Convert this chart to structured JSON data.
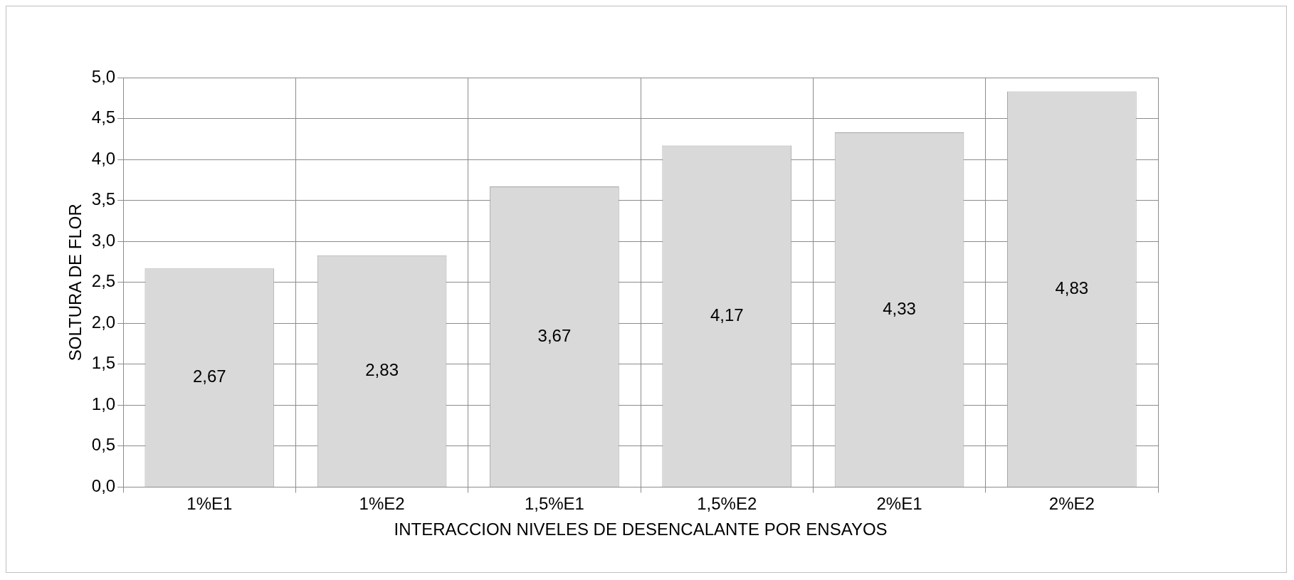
{
  "chart_data": {
    "type": "bar",
    "ylabel": "SOLTURA DE FLOR",
    "xlabel": "INTERACCION NIVELES DE DESENCALANTE POR ENSAYOS",
    "categories": [
      "1%E1",
      "1%E2",
      "1,5%E1",
      "1,5%E2",
      "2%E1",
      "2%E2"
    ],
    "values": [
      2.67,
      2.83,
      3.67,
      4.17,
      4.33,
      4.83
    ],
    "value_labels": [
      "2,67",
      "2,83",
      "3,67",
      "4,17",
      "4,33",
      "4,83"
    ],
    "color": "#d9d9d9",
    "ylim": [
      0,
      5
    ],
    "yticks": [
      {
        "value": 0,
        "label": "0,0"
      },
      {
        "value": 0.5,
        "label": "0,5"
      },
      {
        "value": 1,
        "label": "1,0"
      },
      {
        "value": 1.5,
        "label": "1,5"
      },
      {
        "value": 2,
        "label": "2,0"
      },
      {
        "value": 2.5,
        "label": "2,5"
      },
      {
        "value": 3,
        "label": "3,0"
      },
      {
        "value": 3.5,
        "label": "3,5"
      },
      {
        "value": 4,
        "label": "4,0"
      },
      {
        "value": 4.5,
        "label": "4,5"
      },
      {
        "value": 5,
        "label": "5,0"
      }
    ],
    "grid": true
  }
}
